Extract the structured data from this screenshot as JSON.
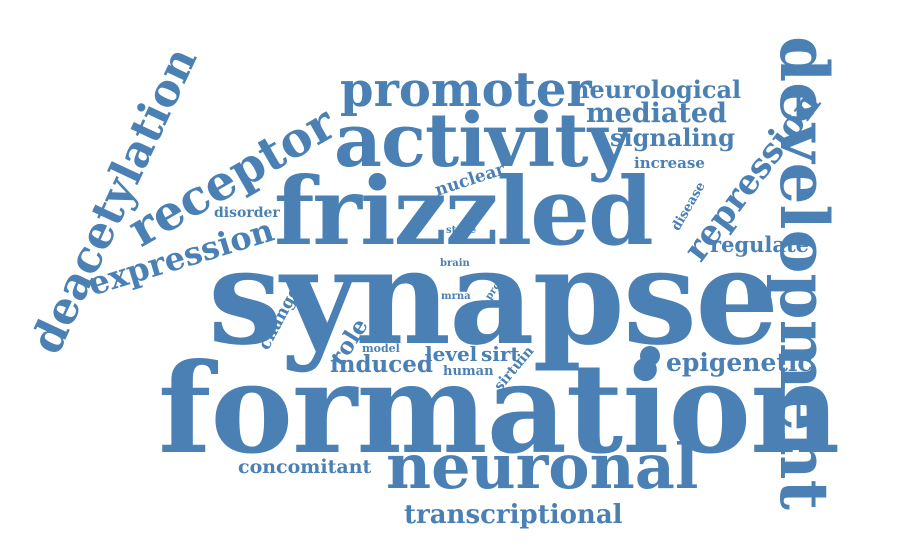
{
  "color": "#4a80b4",
  "words": {
    "synapse": "synapse",
    "formation": "formation",
    "frizzled": "frizzled",
    "development": "development",
    "activity": "activity",
    "neuronal": "neuronal",
    "promoter": "promoter",
    "deacetylation": "deacetylation",
    "receptor": "receptor",
    "expression": "expression",
    "repression": "repression",
    "epigenetic": "epigenetic",
    "transcriptional": "transcriptional",
    "neurological": "neurological",
    "mediated": "mediated",
    "signaling": "signaling",
    "increase": "increase",
    "nuclear": "nuclear",
    "disorder": "disorder",
    "disease": "disease",
    "regulate": "regulate",
    "stage": "stage",
    "brain": "brain",
    "mrna": "mrna",
    "proc": "proc",
    "change": "change",
    "role": "role",
    "model": "model",
    "induced": "induced",
    "level": "level",
    "sirt": "sirt",
    "human": "human",
    "sirtuin": "sirtuin",
    "concomitant": "concomitant"
  }
}
